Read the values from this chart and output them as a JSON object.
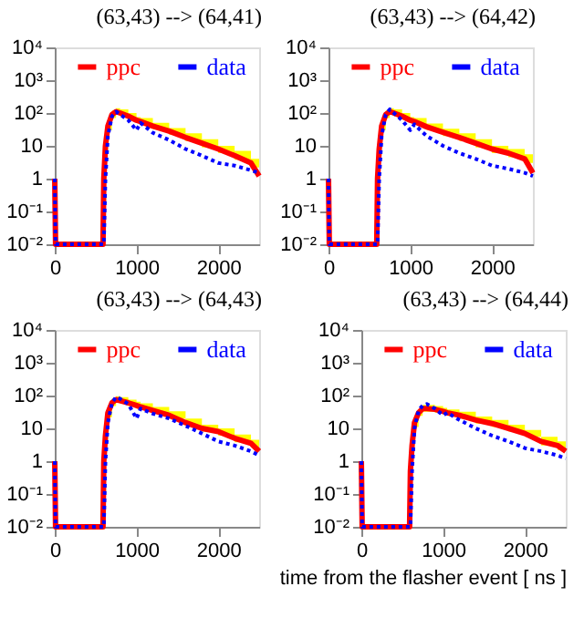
{
  "chart_data": [
    {
      "type": "line",
      "title": "(63,43) --> (64,41)",
      "log": "y",
      "legend": "top",
      "grid": false,
      "xlim": [
        0,
        2500
      ],
      "xticks": [
        0,
        1000,
        2000
      ],
      "ylim": [
        0.01,
        10000
      ],
      "yticks": [
        {
          "value": 0.01,
          "label": "10⁻²"
        },
        {
          "value": 0.1,
          "label": "10⁻¹"
        },
        {
          "value": 1,
          "label": "1"
        },
        {
          "value": 10,
          "label": "10"
        },
        {
          "value": 100,
          "label": "10²"
        },
        {
          "value": 1000,
          "label": "10³"
        },
        {
          "value": 10000,
          "label": "10⁴"
        }
      ],
      "x": [
        0,
        10,
        590,
        600,
        620,
        650,
        700,
        750,
        800,
        900,
        1000,
        1050,
        1200,
        1400,
        1600,
        1800,
        2000,
        2200,
        2400,
        2500
      ],
      "series": [
        {
          "name": "ppc",
          "color": "#ff0000",
          "line_style": "solid",
          "values": [
            1,
            0.01,
            0.01,
            1,
            10,
            40,
            90,
            110,
            100,
            80,
            60,
            55,
            40,
            28,
            18,
            12,
            8,
            5,
            3,
            1.2
          ],
          "lower": [
            null,
            null,
            null,
            0.6,
            7,
            30,
            70,
            90,
            80,
            65,
            50,
            45,
            32,
            22,
            14,
            9,
            6,
            3.8,
            2.2,
            0.9
          ],
          "upper": [
            null,
            null,
            null,
            1.5,
            14,
            55,
            120,
            140,
            130,
            100,
            75,
            70,
            50,
            35,
            24,
            16,
            10,
            7,
            4,
            2
          ]
        },
        {
          "name": "data",
          "color": "#0000ff",
          "line_style": "dotted",
          "values": [
            1,
            0.01,
            0.01,
            0.01,
            1,
            20,
            80,
            110,
            90,
            60,
            30,
            50,
            25,
            15,
            8,
            5,
            3,
            2.5,
            1.8,
            1.5
          ]
        }
      ]
    },
    {
      "type": "line",
      "title": "(63,43) --> (64,42)",
      "log": "y",
      "legend": "top",
      "grid": false,
      "xlim": [
        0,
        2500
      ],
      "xticks": [
        0,
        1000,
        2000
      ],
      "ylim": [
        0.01,
        10000
      ],
      "yticks": [
        {
          "value": 0.01,
          "label": "10⁻²"
        },
        {
          "value": 0.1,
          "label": "10⁻¹"
        },
        {
          "value": 1,
          "label": "1"
        },
        {
          "value": 10,
          "label": "10"
        },
        {
          "value": 100,
          "label": "10²"
        },
        {
          "value": 1000,
          "label": "10³"
        },
        {
          "value": 10000,
          "label": "10⁴"
        }
      ],
      "x": [
        0,
        10,
        590,
        600,
        620,
        650,
        700,
        750,
        800,
        900,
        1000,
        1050,
        1200,
        1400,
        1600,
        1800,
        2000,
        2200,
        2400,
        2500
      ],
      "series": [
        {
          "name": "ppc",
          "color": "#ff0000",
          "line_style": "solid",
          "values": [
            1,
            0.01,
            0.01,
            1,
            8,
            40,
            90,
            110,
            100,
            80,
            60,
            55,
            38,
            26,
            18,
            12,
            8,
            6,
            4,
            1.5
          ],
          "lower": [
            null,
            null,
            null,
            0.6,
            5,
            30,
            70,
            90,
            80,
            65,
            50,
            45,
            30,
            20,
            14,
            9,
            6,
            4.5,
            3,
            1.1
          ],
          "upper": [
            null,
            null,
            null,
            1.5,
            12,
            55,
            120,
            140,
            130,
            100,
            75,
            70,
            48,
            33,
            24,
            16,
            10,
            8,
            5.5,
            2.2
          ]
        },
        {
          "name": "data",
          "color": "#0000ff",
          "line_style": "dotted",
          "values": [
            1,
            0.01,
            0.01,
            0.01,
            1,
            20,
            90,
            130,
            100,
            60,
            30,
            45,
            20,
            10,
            6,
            4,
            2.5,
            2,
            1.5,
            1.2
          ]
        }
      ]
    },
    {
      "type": "line",
      "title": "(63,43) --> (64,43)",
      "log": "y",
      "legend": "top",
      "grid": false,
      "xlim": [
        0,
        2500
      ],
      "xticks": [
        0,
        1000,
        2000
      ],
      "ylim": [
        0.01,
        10000
      ],
      "yticks": [
        {
          "value": 0.01,
          "label": "10⁻²"
        },
        {
          "value": 0.1,
          "label": "10⁻¹"
        },
        {
          "value": 1,
          "label": "1"
        },
        {
          "value": 10,
          "label": "10"
        },
        {
          "value": 100,
          "label": "10²"
        },
        {
          "value": 1000,
          "label": "10³"
        },
        {
          "value": 10000,
          "label": "10⁴"
        }
      ],
      "x": [
        0,
        10,
        590,
        600,
        620,
        650,
        700,
        750,
        800,
        900,
        1000,
        1050,
        1200,
        1400,
        1600,
        1800,
        2000,
        2200,
        2400,
        2500
      ],
      "series": [
        {
          "name": "ppc",
          "color": "#ff0000",
          "line_style": "solid",
          "values": [
            1,
            0.01,
            0.01,
            1,
            6,
            30,
            60,
            75,
            70,
            60,
            50,
            45,
            35,
            25,
            15,
            10,
            8,
            5,
            3.5,
            2
          ],
          "lower": [
            null,
            null,
            null,
            0.6,
            4,
            22,
            48,
            60,
            56,
            48,
            40,
            36,
            28,
            20,
            12,
            8,
            6,
            3.8,
            2.6,
            1.4
          ],
          "upper": [
            null,
            null,
            null,
            1.5,
            9,
            40,
            80,
            95,
            90,
            75,
            65,
            58,
            45,
            33,
            20,
            13,
            10,
            6.5,
            4.5,
            2.8
          ]
        },
        {
          "name": "data",
          "color": "#0000ff",
          "line_style": "dotted",
          "values": [
            1,
            0.01,
            0.01,
            0.01,
            1,
            15,
            60,
            90,
            80,
            55,
            20,
            40,
            28,
            20,
            12,
            7,
            4,
            3,
            2,
            1.5
          ]
        }
      ]
    },
    {
      "type": "line",
      "title": "(63,43) --> (64,44)",
      "xlabel": "time from the flasher event [ ns ]",
      "log": "y",
      "legend": "top",
      "grid": false,
      "xlim": [
        0,
        2500
      ],
      "xticks": [
        0,
        1000,
        2000
      ],
      "ylim": [
        0.01,
        10000
      ],
      "yticks": [
        {
          "value": 0.01,
          "label": "10⁻²"
        },
        {
          "value": 0.1,
          "label": "10⁻¹"
        },
        {
          "value": 1,
          "label": "1"
        },
        {
          "value": 10,
          "label": "10"
        },
        {
          "value": 100,
          "label": "10²"
        },
        {
          "value": 1000,
          "label": "10³"
        },
        {
          "value": 10000,
          "label": "10⁴"
        }
      ],
      "x": [
        0,
        10,
        590,
        600,
        620,
        650,
        700,
        750,
        800,
        900,
        1000,
        1050,
        1200,
        1400,
        1600,
        1800,
        2000,
        2200,
        2400,
        2500
      ],
      "series": [
        {
          "name": "ppc",
          "color": "#ff0000",
          "line_style": "solid",
          "values": [
            1,
            0.01,
            0.01,
            0.5,
            3,
            15,
            30,
            40,
            40,
            38,
            33,
            30,
            25,
            18,
            14,
            10,
            7,
            4,
            3,
            2
          ],
          "lower": [
            null,
            null,
            null,
            0.3,
            2,
            11,
            24,
            32,
            32,
            30,
            26,
            24,
            20,
            14,
            11,
            8,
            5.5,
            3,
            2.2,
            1.4
          ],
          "upper": [
            null,
            null,
            null,
            0.8,
            4.5,
            20,
            38,
            52,
            52,
            48,
            42,
            38,
            32,
            23,
            18,
            13,
            9,
            5.5,
            4,
            2.8
          ]
        },
        {
          "name": "data",
          "color": "#0000ff",
          "line_style": "dotted",
          "values": [
            1,
            0.01,
            0.01,
            0.01,
            0.5,
            10,
            35,
            50,
            55,
            40,
            25,
            30,
            18,
            10,
            6,
            4,
            2.5,
            2,
            1.5,
            1.2
          ]
        }
      ]
    }
  ]
}
